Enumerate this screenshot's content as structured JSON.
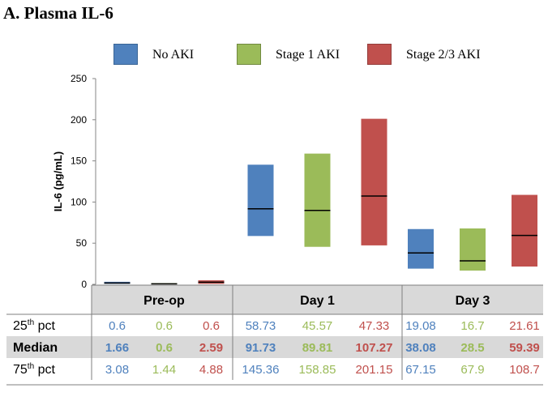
{
  "panel_title": "A. Plasma IL-6",
  "colors": {
    "no_aki": "#4F81BD",
    "stage1": "#9BBB59",
    "stage23": "#C0504D",
    "table_band": "#D9D9D9"
  },
  "chart_data": {
    "type": "box",
    "ylabel": "IL-6 (pg/mL)",
    "ylim": [
      0,
      250
    ],
    "yticks": [
      0,
      50,
      100,
      150,
      200,
      250
    ],
    "categories": [
      "Pre-op",
      "Day 1",
      "Day 3"
    ],
    "legend": {
      "position": "top"
    },
    "grid": false,
    "series": [
      {
        "name": "No AKI",
        "color": "#4F81BD",
        "p25": [
          0.6,
          58.73,
          19.08
        ],
        "median": [
          1.66,
          91.73,
          38.08
        ],
        "p75": [
          3.08,
          145.36,
          67.15
        ]
      },
      {
        "name": "Stage 1 AKI",
        "color": "#9BBB59",
        "p25": [
          0.6,
          45.57,
          16.7
        ],
        "median": [
          0.6,
          89.81,
          28.5
        ],
        "p75": [
          1.44,
          158.85,
          67.9
        ]
      },
      {
        "name": "Stage 2/3 AKI",
        "color": "#C0504D",
        "p25": [
          0.6,
          47.33,
          21.61
        ],
        "median": [
          2.59,
          107.27,
          59.39
        ],
        "p75": [
          4.88,
          201.15,
          108.7
        ]
      }
    ],
    "table": {
      "rows": [
        {
          "label_main": "25",
          "label_sup": "th",
          "label_rest": " pct",
          "key": "p25",
          "bold": false
        },
        {
          "label_main": "Median",
          "label_sup": "",
          "label_rest": "",
          "key": "median",
          "bold": true
        },
        {
          "label_main": "75",
          "label_sup": "th",
          "label_rest": " pct",
          "key": "p75",
          "bold": false
        }
      ],
      "cells": {
        "p25": [
          [
            "0.6",
            "0.6",
            "0.6"
          ],
          [
            "58.73",
            "45.57",
            "47.33"
          ],
          [
            "19.08",
            "16.7",
            "21.61"
          ]
        ],
        "median": [
          [
            "1.66",
            "0.6",
            "2.59"
          ],
          [
            "91.73",
            "89.81",
            "107.27"
          ],
          [
            "38.08",
            "28.5",
            "59.39"
          ]
        ],
        "p75": [
          [
            "3.08",
            "1.44",
            "4.88"
          ],
          [
            "145.36",
            "158.85",
            "201.15"
          ],
          [
            "67.15",
            "67.9",
            "108.7"
          ]
        ]
      }
    }
  }
}
